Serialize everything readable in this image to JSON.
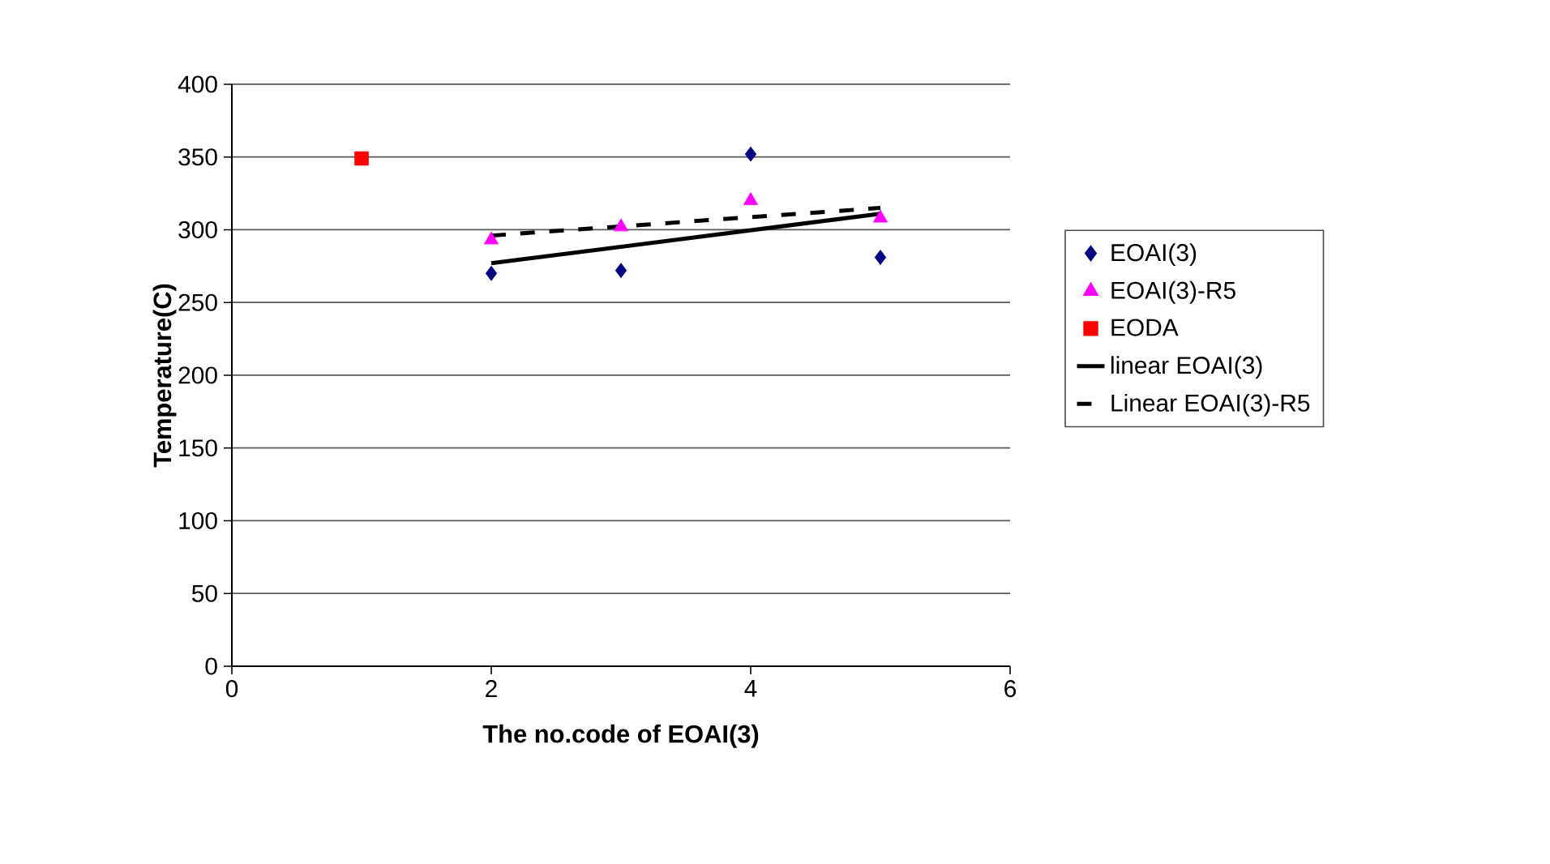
{
  "chart_data": {
    "type": "scatter",
    "xlabel": "The no.code of EOAI(3)",
    "ylabel": "Temperature(C)",
    "xlim": [
      0,
      6
    ],
    "xticks": [
      0,
      2,
      4,
      6
    ],
    "ylim": [
      0,
      400
    ],
    "yticks": [
      0,
      50,
      100,
      150,
      200,
      250,
      300,
      350,
      400
    ],
    "grid": "y",
    "legend": "right",
    "series": [
      {
        "name": "EOAI(3)",
        "type": "scatter",
        "marker": "diamond",
        "color": "#000080",
        "x": [
          2,
          3,
          4,
          5
        ],
        "values": [
          270,
          272,
          352,
          281
        ]
      },
      {
        "name": "EOAI(3)-R5",
        "type": "scatter",
        "marker": "triangle",
        "color": "#ff00ff",
        "x": [
          2,
          3,
          4,
          5
        ],
        "values": [
          293,
          302,
          320,
          308
        ]
      },
      {
        "name": "EODA",
        "type": "scatter",
        "marker": "square",
        "color": "#ff0000",
        "x": [
          1
        ],
        "values": [
          349
        ]
      },
      {
        "name": "linear EOAI(3)",
        "type": "line",
        "marker": "none",
        "line_style": "solid",
        "color": "#000000",
        "x": [
          2,
          5
        ],
        "values": [
          277,
          311
        ]
      },
      {
        "name": "Linear EOAI(3)-R5",
        "type": "line",
        "marker": "none",
        "line_style": "dashed",
        "color": "#000000",
        "x": [
          2,
          5
        ],
        "values": [
          296,
          315
        ]
      }
    ]
  }
}
